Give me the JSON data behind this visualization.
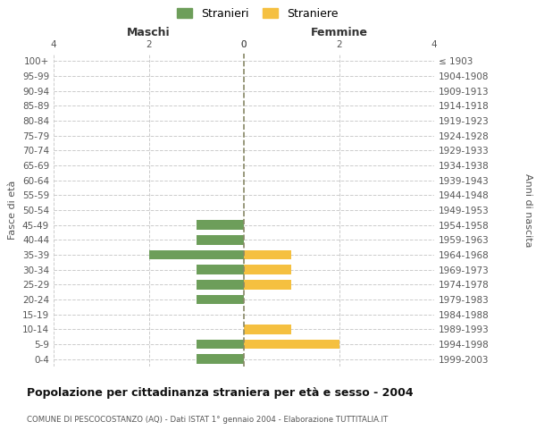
{
  "age_groups": [
    "0-4",
    "5-9",
    "10-14",
    "15-19",
    "20-24",
    "25-29",
    "30-34",
    "35-39",
    "40-44",
    "45-49",
    "50-54",
    "55-59",
    "60-64",
    "65-69",
    "70-74",
    "75-79",
    "80-84",
    "85-89",
    "90-94",
    "95-99",
    "100+"
  ],
  "birth_years": [
    "1999-2003",
    "1994-1998",
    "1989-1993",
    "1984-1988",
    "1979-1983",
    "1974-1978",
    "1969-1973",
    "1964-1968",
    "1959-1963",
    "1954-1958",
    "1949-1953",
    "1944-1948",
    "1939-1943",
    "1934-1938",
    "1929-1933",
    "1924-1928",
    "1919-1923",
    "1914-1918",
    "1909-1913",
    "1904-1908",
    "≤ 1903"
  ],
  "males": [
    1,
    1,
    0,
    0,
    1,
    1,
    1,
    2,
    1,
    1,
    0,
    0,
    0,
    0,
    0,
    0,
    0,
    0,
    0,
    0,
    0
  ],
  "females": [
    0,
    2,
    1,
    0,
    0,
    1,
    1,
    1,
    0,
    0,
    0,
    0,
    0,
    0,
    0,
    0,
    0,
    0,
    0,
    0,
    0
  ],
  "male_color": "#6d9e5a",
  "female_color": "#f5c040",
  "title": "Popolazione per cittadinanza straniera per età e sesso - 2004",
  "subtitle": "COMUNE DI PESCOCOSTANZO (AQ) - Dati ISTAT 1° gennaio 2004 - Elaborazione TUTTITALIA.IT",
  "ylabel_left": "Fasce di età",
  "ylabel_right": "Anni di nascita",
  "xlabel_left": "Maschi",
  "xlabel_right": "Femmine",
  "legend_male": "Stranieri",
  "legend_female": "Straniere",
  "xlim": 4,
  "background_color": "#ffffff",
  "grid_color": "#cccccc"
}
